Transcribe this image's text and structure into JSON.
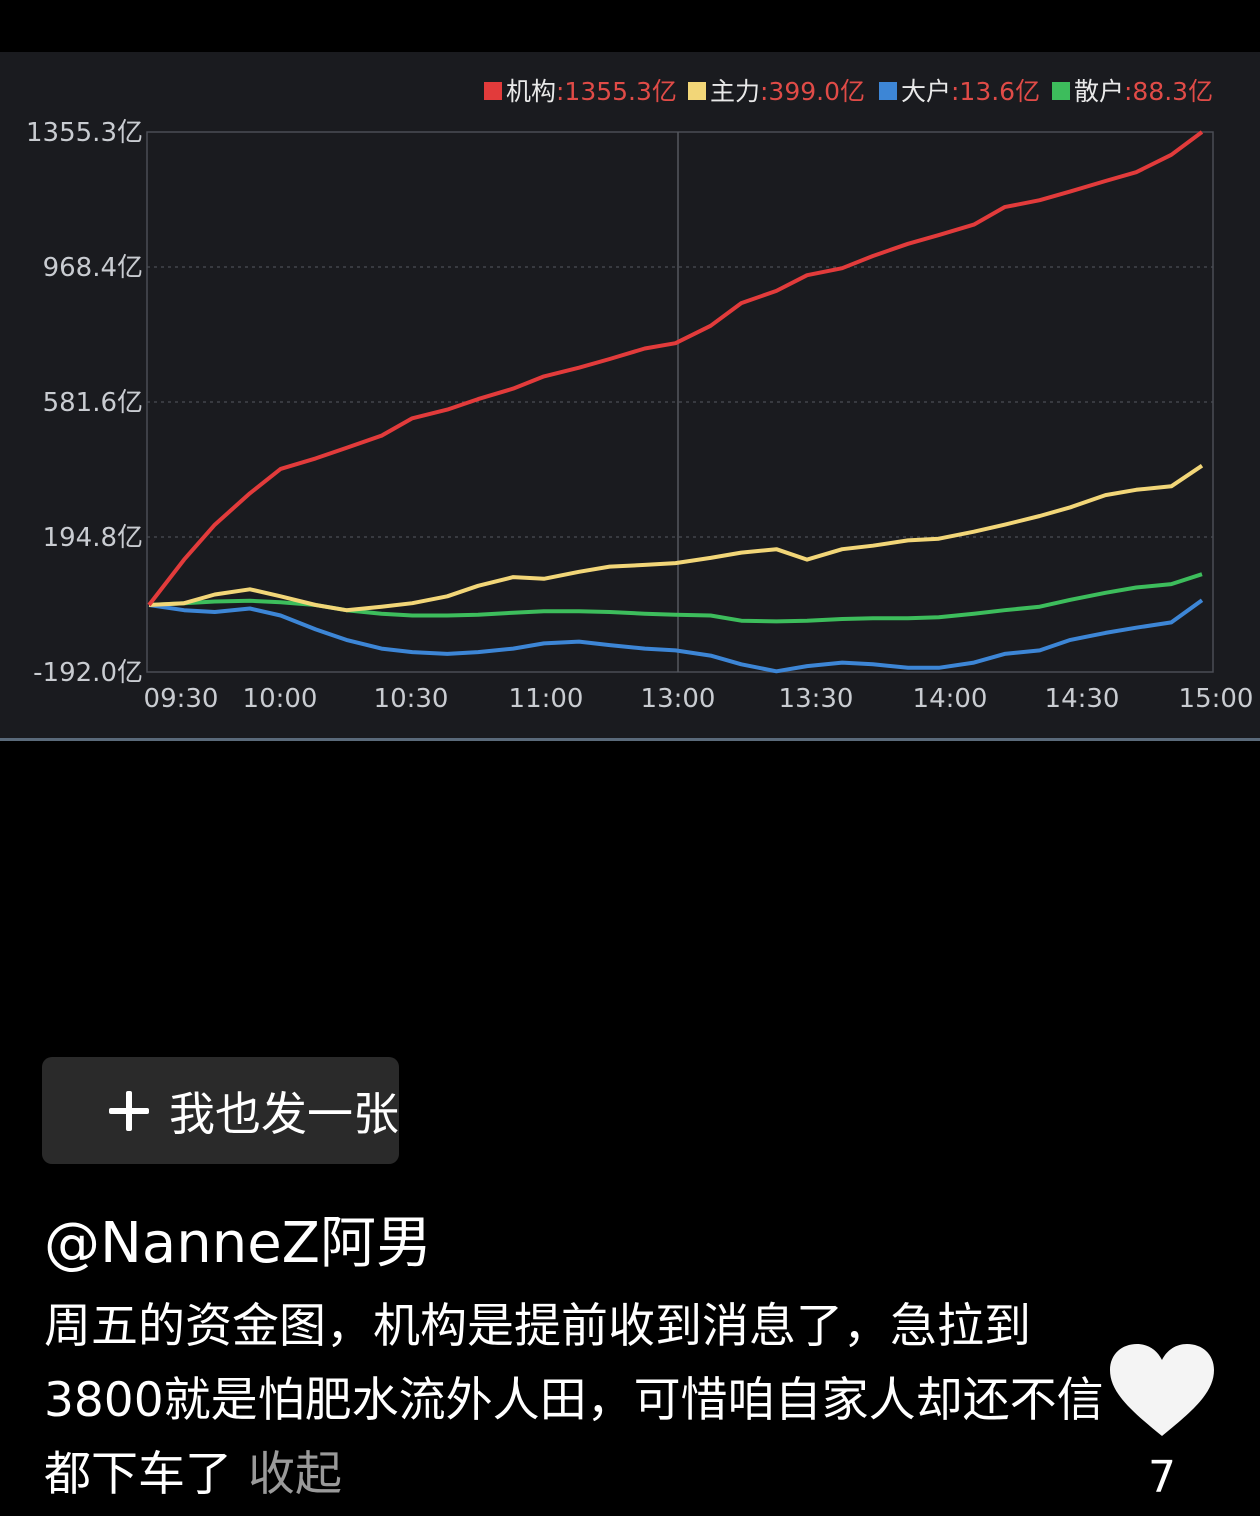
{
  "chart_data": {
    "type": "line",
    "x_ticks": [
      "09:30",
      "10:00",
      "10:30",
      "11:00",
      "13:00",
      "13:30",
      "14:00",
      "14:30",
      "15:00"
    ],
    "y_ticks": [
      "1355.3亿",
      "968.4亿",
      "581.6亿",
      "194.8亿",
      "-192.0亿"
    ],
    "ylim": [
      -192.0,
      1355.3
    ],
    "unit": "亿",
    "grid": true,
    "legend_position": "top-right",
    "x": [
      0,
      8,
      15,
      23,
      30,
      38,
      45,
      53,
      60,
      68,
      75,
      83,
      90,
      98,
      105,
      113,
      120,
      128,
      135,
      143,
      150,
      158,
      165,
      173,
      180,
      188,
      195,
      203,
      210,
      218,
      225,
      233,
      240
    ],
    "series": [
      {
        "name": "机构",
        "legend_value": ":1355.3亿",
        "color": "#e23b3b",
        "values": [
          0,
          130,
          230,
          320,
          390,
          420,
          450,
          485,
          535,
          560,
          590,
          620,
          655,
          680,
          705,
          735,
          750,
          800,
          865,
          900,
          945,
          965,
          1000,
          1035,
          1060,
          1090,
          1140,
          1160,
          1185,
          1215,
          1240,
          1290,
          1355.3
        ]
      },
      {
        "name": "主力",
        "legend_value": ":399.0亿",
        "color": "#f2d678",
        "values": [
          0,
          5,
          30,
          45,
          25,
          0,
          -15,
          -5,
          5,
          25,
          55,
          80,
          75,
          95,
          110,
          115,
          120,
          135,
          150,
          160,
          130,
          160,
          170,
          185,
          190,
          210,
          230,
          255,
          280,
          315,
          330,
          340,
          399.0
        ]
      },
      {
        "name": "大户",
        "legend_value": ":13.6亿",
        "color": "#3d86d6",
        "values": [
          0,
          -15,
          -20,
          -10,
          -30,
          -70,
          -100,
          -125,
          -135,
          -140,
          -135,
          -125,
          -110,
          -105,
          -115,
          -125,
          -130,
          -145,
          -170,
          -190,
          -175,
          -165,
          -170,
          -180,
          -180,
          -165,
          -140,
          -130,
          -100,
          -80,
          -65,
          -50,
          13.6
        ]
      },
      {
        "name": "散户",
        "legend_value": ":88.3亿",
        "color": "#3dbd5c",
        "values": [
          0,
          5,
          10,
          12,
          8,
          0,
          -15,
          -25,
          -30,
          -30,
          -28,
          -22,
          -18,
          -18,
          -20,
          -25,
          -28,
          -30,
          -45,
          -47,
          -45,
          -40,
          -38,
          -38,
          -35,
          -25,
          -15,
          -5,
          15,
          35,
          50,
          60,
          88.3
        ]
      }
    ]
  },
  "share_button": {
    "label": "我也发一张"
  },
  "post": {
    "username": "@NanneZ阿男",
    "caption": "周五的资金图，机构是提前收到消息了，急拉到3800就是怕肥水流外人田，可惜咱自家人却还不信都下车了",
    "collapse_label": "收起",
    "like_count": "7"
  }
}
